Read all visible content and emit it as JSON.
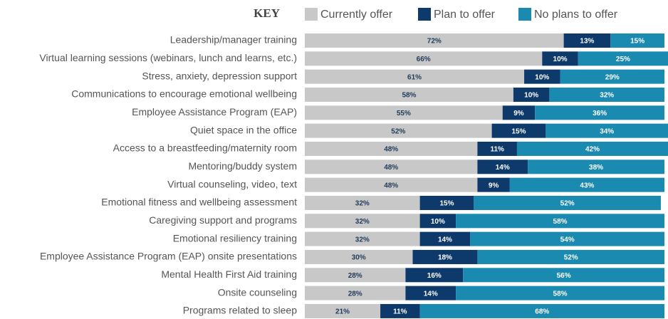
{
  "chart_data": {
    "type": "stacked-bar-horizontal",
    "legend_title": "KEY",
    "categories": [
      "Leadership/manager training",
      "Virtual learning sessions (webinars, lunch and learns, etc.)",
      "Stress, anxiety, depression support",
      "Communications to encourage emotional wellbeing",
      "Employee Assistance Program (EAP)",
      "Quiet space in the office",
      "Access to a breastfeeding/maternity room",
      "Mentoring/buddy system",
      "Virtual counseling, video, text",
      "Emotional fitness and wellbeing assessment",
      "Caregiving support and programs",
      "Emotional resiliency training",
      "Employee Assistance Program (EAP) onsite presentations",
      "Mental Health First Aid training",
      "Onsite counseling",
      "Programs related to sleep"
    ],
    "series": [
      {
        "name": "Currently offer",
        "color": "#c8c8c8",
        "label_color": "#1f3b5a",
        "values": [
          72,
          66,
          61,
          58,
          55,
          52,
          48,
          48,
          48,
          32,
          32,
          32,
          30,
          28,
          28,
          21
        ],
        "value_labels": [
          "72%",
          "66%",
          "61%",
          "58%",
          "55%",
          "52%",
          "48%",
          "48%",
          "48%",
          "32%",
          "32%",
          "32%",
          "30%",
          "28%",
          "28%",
          "21%"
        ]
      },
      {
        "name": "Plan to offer",
        "color": "#0d3a6b",
        "label_color": "#ffffff",
        "values": [
          13,
          10,
          10,
          10,
          9,
          15,
          11,
          14,
          9,
          15,
          10,
          14,
          18,
          16,
          14,
          11
        ],
        "value_labels": [
          "13%",
          "10%",
          "10%",
          "10%",
          "9%",
          "15%",
          "11%",
          "14%",
          "9%",
          "15%",
          "10%",
          "14%",
          "18%",
          "16%",
          "14%",
          "11%"
        ]
      },
      {
        "name": "No plans to offer",
        "color": "#1a8ab0",
        "label_color": "#ffffff",
        "values": [
          15,
          25,
          29,
          32,
          36,
          34,
          42,
          38,
          43,
          52,
          58,
          54,
          52,
          56,
          58,
          68
        ],
        "value_labels": [
          "15%",
          "25%",
          "29%",
          "32%",
          "36%",
          "34%",
          "42%",
          "38%",
          "43%",
          "52%",
          "58%",
          "54%",
          "52%",
          "56%",
          "58%",
          "68%"
        ]
      }
    ]
  }
}
